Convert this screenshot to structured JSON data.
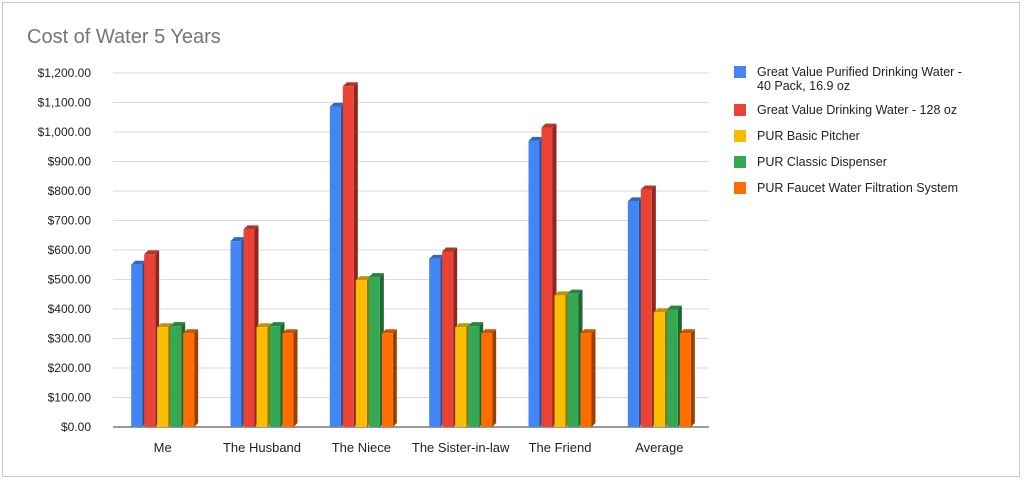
{
  "chart_data": {
    "type": "bar",
    "title": "Cost of Water 5 Years",
    "xlabel": "",
    "ylabel": "",
    "ylim": [
      0,
      1200
    ],
    "y_ticks": [
      "$0.00",
      "$100.00",
      "$200.00",
      "$300.00",
      "$400.00",
      "$500.00",
      "$600.00",
      "$700.00",
      "$800.00",
      "$900.00",
      "$1,000.00",
      "$1,100.00",
      "$1,200.00"
    ],
    "y_tick_values": [
      0,
      100,
      200,
      300,
      400,
      500,
      600,
      700,
      800,
      900,
      1000,
      1100,
      1200
    ],
    "grid": true,
    "legend_position": "right",
    "style": "3d",
    "categories": [
      "Me",
      "The Husband",
      "The Niece",
      "The Sister-in-law",
      "The Friend",
      "Average"
    ],
    "series": [
      {
        "name": [
          "Great Value Purified Drinking Water -",
          "40 Pack, 16.9 oz"
        ],
        "color": "#4285f4",
        "values": [
          550,
          630,
          1085,
          570,
          970,
          765
        ]
      },
      {
        "name": [
          "Great Value Drinking Water - 128 oz"
        ],
        "color": "#ea4335",
        "values": [
          585,
          670,
          1155,
          595,
          1015,
          805
        ]
      },
      {
        "name": [
          "PUR Basic Pitcher"
        ],
        "color": "#fbbc04",
        "values": [
          338,
          338,
          498,
          338,
          446,
          389
        ]
      },
      {
        "name": [
          "PUR Classic Dispenser"
        ],
        "color": "#34a853",
        "values": [
          342,
          342,
          508,
          342,
          452,
          398
        ]
      },
      {
        "name": [
          "PUR Faucet Water Filtration System"
        ],
        "color": "#ff6d01",
        "values": [
          318,
          318,
          318,
          318,
          318,
          318
        ]
      }
    ]
  }
}
